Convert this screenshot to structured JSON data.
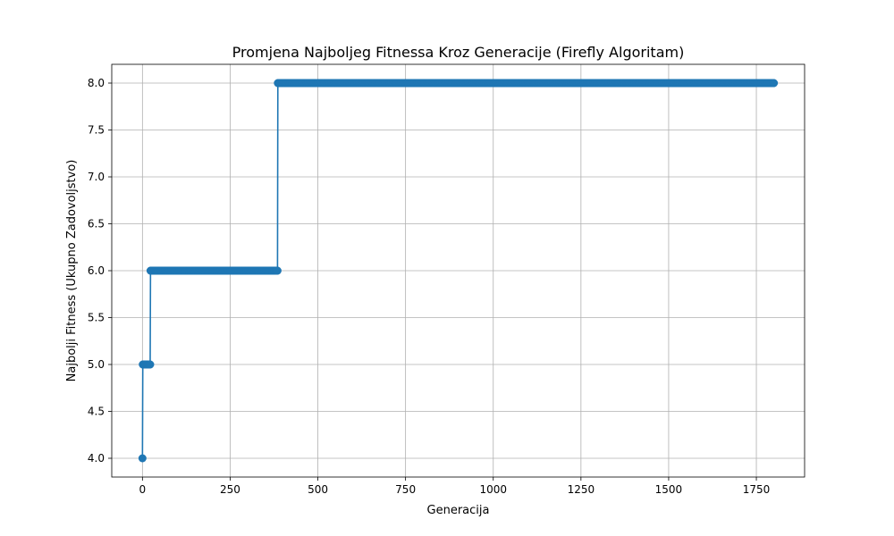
{
  "chart_data": {
    "type": "line",
    "title": "Promjena Najboljeg Fitnessa Kroz Generacije (Firefly Algoritam)",
    "xlabel": "Generacija",
    "ylabel": "Najbolji Fitness (Ukupno Zadovoljstvo)",
    "xlim": [
      -87.5,
      1887.5
    ],
    "ylim": [
      3.8,
      8.2
    ],
    "x_ticks": [
      0,
      250,
      500,
      750,
      1000,
      1250,
      1500,
      1750
    ],
    "x_tick_labels": [
      "0",
      "250",
      "500",
      "750",
      "1000",
      "1250",
      "1500",
      "1750"
    ],
    "y_ticks": [
      4.0,
      4.5,
      5.0,
      5.5,
      6.0,
      6.5,
      7.0,
      7.5,
      8.0
    ],
    "y_tick_labels": [
      "4.0",
      "4.5",
      "5.0",
      "5.5",
      "6.0",
      "6.5",
      "7.0",
      "7.5",
      "8.0"
    ],
    "grid": true,
    "marker": "circle",
    "color": "#1f77b4",
    "segments": [
      {
        "x_start": 0,
        "x_end": 0,
        "y": 4.0
      },
      {
        "x_start": 1,
        "x_end": 22,
        "y": 5.0
      },
      {
        "x_start": 23,
        "x_end": 385,
        "y": 6.0
      },
      {
        "x_start": 386,
        "x_end": 1800,
        "y": 8.0
      }
    ]
  }
}
